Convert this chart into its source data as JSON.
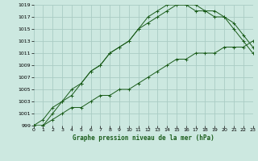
{
  "title": "Graphe pression niveau de la mer (hPa)",
  "bg_color": "#cce8e0",
  "grid_color": "#aaccc4",
  "line_color": "#1a5c1a",
  "x_min": 0,
  "x_max": 23,
  "y_min": 999,
  "y_max": 1019,
  "y_ticks": [
    999,
    1001,
    1003,
    1005,
    1007,
    1009,
    1011,
    1013,
    1015,
    1017,
    1019
  ],
  "x_ticks": [
    0,
    1,
    2,
    3,
    4,
    5,
    6,
    7,
    8,
    9,
    10,
    11,
    12,
    13,
    14,
    15,
    16,
    17,
    18,
    19,
    20,
    21,
    22,
    23
  ],
  "series": {
    "line1": [
      999,
      999,
      1001,
      1003,
      1004,
      1006,
      1008,
      1009,
      1011,
      1012,
      1013,
      1015,
      1017,
      1018,
      1019,
      1019,
      1019,
      1018,
      1018,
      1017,
      1017,
      1016,
      1014,
      1012
    ],
    "line2": [
      999,
      1000,
      1002,
      1003,
      1005,
      1006,
      1008,
      1009,
      1011,
      1012,
      1013,
      1015,
      1016,
      1017,
      1018,
      1019,
      1019,
      1019,
      1018,
      1018,
      1017,
      1015,
      1013,
      1011
    ],
    "line3": [
      999,
      999,
      1000,
      1001,
      1002,
      1002,
      1003,
      1004,
      1004,
      1005,
      1005,
      1006,
      1007,
      1008,
      1009,
      1010,
      1010,
      1011,
      1011,
      1011,
      1012,
      1012,
      1012,
      1013
    ]
  }
}
